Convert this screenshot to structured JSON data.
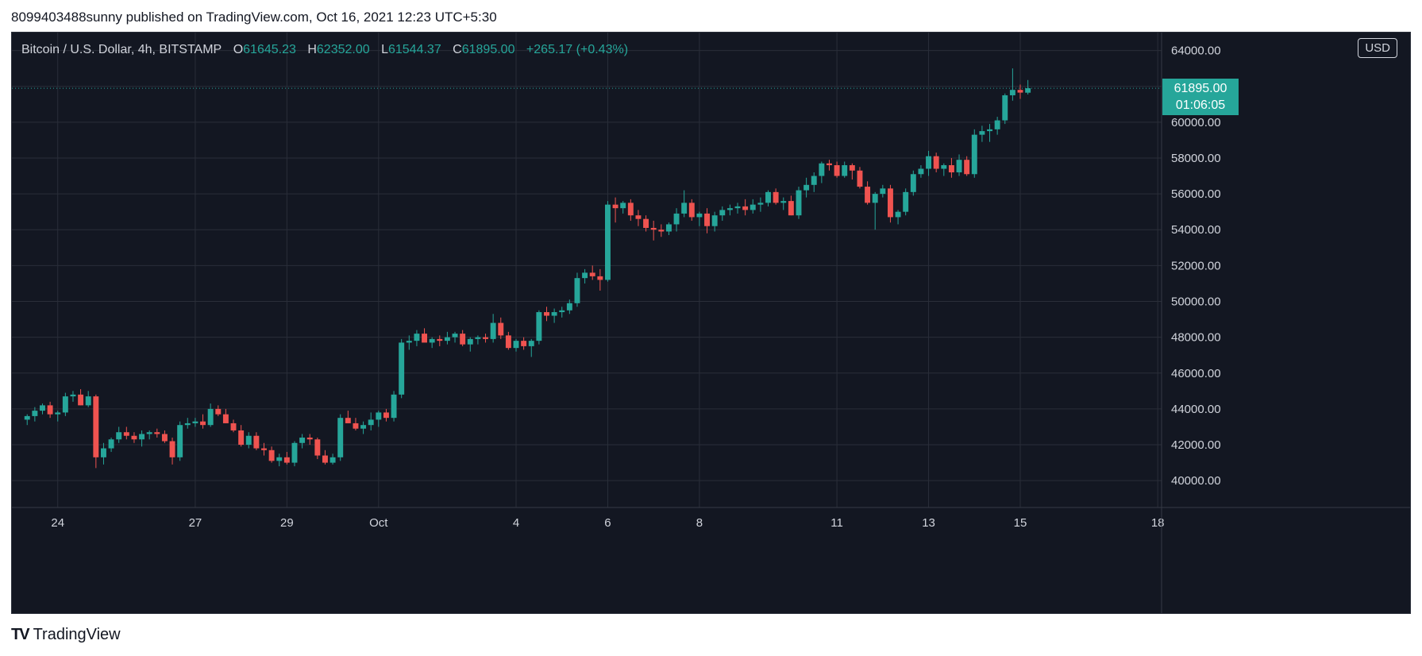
{
  "header": {
    "published_text": "8099403488sunny published on TradingView.com, Oct 16, 2021 12:23 UTC+5:30"
  },
  "legend": {
    "symbol": "Bitcoin / U.S. Dollar, 4h, BITSTAMP",
    "o_label": "O",
    "o_value": "61645.23",
    "h_label": "H",
    "h_value": "62352.00",
    "l_label": "L",
    "l_value": "61544.37",
    "c_label": "C",
    "c_value": "61895.00",
    "change": "+265.17 (+0.43%)"
  },
  "currency_button": "USD",
  "price_tag": {
    "price": "61895.00",
    "countdown": "01:06:05"
  },
  "footer": {
    "brand": "TradingView",
    "logo_text": "TV"
  },
  "colors": {
    "up": "#26a69a",
    "down": "#ef5350",
    "background": "#131722",
    "grid": "#2a2e39",
    "text": "#d1d4dc"
  },
  "chart_data": {
    "type": "candlestick",
    "title": "Bitcoin / U.S. Dollar, 4h, BITSTAMP",
    "interval": "4h",
    "ylim": [
      38500,
      65000
    ],
    "y_ticks": [
      {
        "value": 40000,
        "label": "40000.00"
      },
      {
        "value": 42000,
        "label": "42000.00"
      },
      {
        "value": 44000,
        "label": "44000.00"
      },
      {
        "value": 46000,
        "label": "46000.00"
      },
      {
        "value": 48000,
        "label": "48000.00"
      },
      {
        "value": 50000,
        "label": "50000.00"
      },
      {
        "value": 52000,
        "label": "52000.00"
      },
      {
        "value": 54000,
        "label": "54000.00"
      },
      {
        "value": 56000,
        "label": "56000.00"
      },
      {
        "value": 58000,
        "label": "58000.00"
      },
      {
        "value": 60000,
        "label": "60000.00"
      },
      {
        "value": 62000,
        "label": "62000.00"
      },
      {
        "value": 64000,
        "label": "64000.00"
      }
    ],
    "x_ticks": [
      {
        "index": 4,
        "label": "24"
      },
      {
        "index": 22,
        "label": "27"
      },
      {
        "index": 34,
        "label": "29"
      },
      {
        "index": 46,
        "label": "Oct"
      },
      {
        "index": 64,
        "label": "4"
      },
      {
        "index": 76,
        "label": "6"
      },
      {
        "index": 88,
        "label": "8"
      },
      {
        "index": 106,
        "label": "11"
      },
      {
        "index": 118,
        "label": "13"
      },
      {
        "index": 130,
        "label": "15"
      },
      {
        "index": 148,
        "label": "18"
      }
    ],
    "index_range": [
      -2,
      148.5
    ],
    "last_price": 61895,
    "candles": [
      [
        43400,
        43700,
        43100,
        43600
      ],
      [
        43600,
        44100,
        43300,
        43900
      ],
      [
        43900,
        44300,
        43700,
        44200
      ],
      [
        44200,
        44400,
        43500,
        43700
      ],
      [
        43700,
        43900,
        43300,
        43800
      ],
      [
        43800,
        44900,
        43600,
        44700
      ],
      [
        44700,
        45000,
        44400,
        44800
      ],
      [
        44800,
        45100,
        44200,
        44200
      ],
      [
        44200,
        45000,
        44100,
        44700
      ],
      [
        44700,
        44800,
        40700,
        41300
      ],
      [
        41300,
        42100,
        40900,
        41800
      ],
      [
        41800,
        42400,
        41600,
        42300
      ],
      [
        42300,
        43000,
        42100,
        42700
      ],
      [
        42700,
        43000,
        42300,
        42500
      ],
      [
        42500,
        42700,
        42100,
        42300
      ],
      [
        42300,
        42800,
        41900,
        42600
      ],
      [
        42600,
        42800,
        42300,
        42700
      ],
      [
        42700,
        42900,
        42400,
        42600
      ],
      [
        42600,
        42800,
        42100,
        42200
      ],
      [
        42200,
        42400,
        40900,
        41300
      ],
      [
        41300,
        43300,
        41100,
        43100
      ],
      [
        43100,
        43500,
        42900,
        43200
      ],
      [
        43200,
        43500,
        43000,
        43300
      ],
      [
        43300,
        43700,
        42900,
        43100
      ],
      [
        43100,
        44300,
        43000,
        44000
      ],
      [
        44000,
        44200,
        43600,
        43700
      ],
      [
        43700,
        44000,
        43200,
        43200
      ],
      [
        43200,
        43400,
        42700,
        42800
      ],
      [
        42800,
        43100,
        41900,
        42000
      ],
      [
        42000,
        42700,
        41800,
        42500
      ],
      [
        42500,
        42700,
        41700,
        41800
      ],
      [
        41800,
        42100,
        41400,
        41700
      ],
      [
        41700,
        41900,
        41000,
        41100
      ],
      [
        41100,
        41500,
        40800,
        41300
      ],
      [
        41300,
        41600,
        40900,
        41000
      ],
      [
        41000,
        42200,
        40800,
        42100
      ],
      [
        42100,
        42600,
        41800,
        42400
      ],
      [
        42400,
        42600,
        42000,
        42300
      ],
      [
        42300,
        42400,
        41200,
        41400
      ],
      [
        41400,
        41700,
        40900,
        41000
      ],
      [
        41000,
        41500,
        40900,
        41300
      ],
      [
        41300,
        43700,
        41100,
        43500
      ],
      [
        43500,
        43900,
        43200,
        43200
      ],
      [
        43200,
        43500,
        42800,
        42900
      ],
      [
        42900,
        43300,
        42600,
        43100
      ],
      [
        43100,
        43800,
        42800,
        43400
      ],
      [
        43400,
        43900,
        43000,
        43800
      ],
      [
        43800,
        44000,
        43300,
        43500
      ],
      [
        43500,
        45000,
        43300,
        44800
      ],
      [
        44800,
        47900,
        44600,
        47700
      ],
      [
        47700,
        48100,
        47300,
        47800
      ],
      [
        47800,
        48400,
        47500,
        48200
      ],
      [
        48200,
        48500,
        47800,
        47700
      ],
      [
        47700,
        48000,
        47400,
        47900
      ],
      [
        47900,
        48100,
        47500,
        47800
      ],
      [
        47800,
        48300,
        47600,
        48000
      ],
      [
        48000,
        48300,
        47700,
        48200
      ],
      [
        48200,
        48400,
        47500,
        47600
      ],
      [
        47600,
        48000,
        47200,
        47900
      ],
      [
        47900,
        48100,
        47600,
        48000
      ],
      [
        48000,
        48200,
        47700,
        47900
      ],
      [
        47900,
        49300,
        47700,
        48800
      ],
      [
        48800,
        49100,
        47900,
        48100
      ],
      [
        48100,
        48300,
        47300,
        47400
      ],
      [
        47400,
        47900,
        47200,
        47800
      ],
      [
        47800,
        48000,
        47300,
        47500
      ],
      [
        47500,
        47900,
        46900,
        47800
      ],
      [
        47800,
        49500,
        47600,
        49400
      ],
      [
        49400,
        49700,
        48900,
        49200
      ],
      [
        49200,
        49600,
        48800,
        49400
      ],
      [
        49400,
        49700,
        49100,
        49500
      ],
      [
        49500,
        50100,
        49300,
        49900
      ],
      [
        49900,
        51600,
        49700,
        51300
      ],
      [
        51300,
        51800,
        51000,
        51600
      ],
      [
        51600,
        52000,
        51200,
        51400
      ],
      [
        51400,
        51800,
        50600,
        51200
      ],
      [
        51200,
        55600,
        51100,
        55400
      ],
      [
        55400,
        55800,
        54400,
        55200
      ],
      [
        55200,
        55600,
        54900,
        55500
      ],
      [
        55500,
        55700,
        54500,
        54800
      ],
      [
        54800,
        55100,
        54200,
        54600
      ],
      [
        54600,
        54800,
        53900,
        54100
      ],
      [
        54100,
        54500,
        53400,
        54000
      ],
      [
        54000,
        54300,
        53600,
        53900
      ],
      [
        53900,
        54400,
        53700,
        54300
      ],
      [
        54300,
        55200,
        53900,
        54900
      ],
      [
        54900,
        56200,
        54700,
        55500
      ],
      [
        55500,
        55700,
        54500,
        54700
      ],
      [
        54700,
        55000,
        54200,
        54900
      ],
      [
        54900,
        55200,
        53800,
        54200
      ],
      [
        54200,
        55000,
        53900,
        54800
      ],
      [
        54800,
        55300,
        54500,
        55100
      ],
      [
        55100,
        55400,
        54800,
        55200
      ],
      [
        55200,
        55500,
        54900,
        55300
      ],
      [
        55300,
        55700,
        54800,
        55100
      ],
      [
        55100,
        55700,
        54900,
        55400
      ],
      [
        55400,
        55800,
        55000,
        55500
      ],
      [
        55500,
        56200,
        55300,
        56100
      ],
      [
        56100,
        56300,
        55400,
        55500
      ],
      [
        55500,
        55800,
        55100,
        55600
      ],
      [
        55600,
        55900,
        54800,
        54800
      ],
      [
        54800,
        56400,
        54600,
        56200
      ],
      [
        56200,
        56900,
        55800,
        56500
      ],
      [
        56500,
        57200,
        56100,
        57000
      ],
      [
        57000,
        57800,
        56600,
        57700
      ],
      [
        57700,
        57900,
        57300,
        57600
      ],
      [
        57600,
        57800,
        56900,
        57000
      ],
      [
        57000,
        57800,
        56900,
        57600
      ],
      [
        57600,
        57700,
        56800,
        57300
      ],
      [
        57300,
        57500,
        56300,
        56400
      ],
      [
        56400,
        56700,
        55400,
        55500
      ],
      [
        55500,
        56100,
        54000,
        56000
      ],
      [
        56000,
        56500,
        55800,
        56300
      ],
      [
        56300,
        56500,
        54400,
        54700
      ],
      [
        54700,
        55100,
        54300,
        55000
      ],
      [
        55000,
        56300,
        54800,
        56100
      ],
      [
        56100,
        57300,
        55900,
        57100
      ],
      [
        57100,
        57600,
        56900,
        57400
      ],
      [
        57400,
        58400,
        57000,
        58100
      ],
      [
        58100,
        58300,
        57200,
        57400
      ],
      [
        57400,
        57700,
        57000,
        57600
      ],
      [
        57600,
        58000,
        56900,
        57200
      ],
      [
        57200,
        58200,
        57000,
        57900
      ],
      [
        57900,
        58100,
        57000,
        57100
      ],
      [
        57100,
        59600,
        56900,
        59300
      ],
      [
        59300,
        59800,
        58900,
        59500
      ],
      [
        59500,
        59900,
        58900,
        59600
      ],
      [
        59600,
        60300,
        59300,
        60100
      ],
      [
        60100,
        61600,
        59900,
        61500
      ],
      [
        61500,
        63000,
        61200,
        61800
      ],
      [
        61800,
        62100,
        61300,
        61650
      ],
      [
        61645,
        62352,
        61544,
        61895
      ]
    ]
  }
}
